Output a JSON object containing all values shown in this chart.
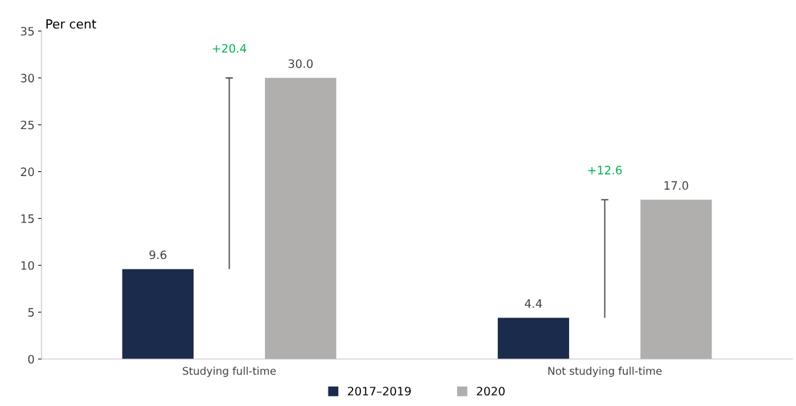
{
  "chart_data": {
    "type": "bar",
    "ylabel": "Per cent",
    "categories": [
      "Studying full-time",
      "Not studying full-time"
    ],
    "series": [
      {
        "name": "2017–2019",
        "color": "#1b2b4b",
        "values": [
          9.6,
          4.4
        ],
        "value_labels": [
          "9.6",
          "4.4"
        ]
      },
      {
        "name": "2020",
        "color": "#b0afad",
        "values": [
          30.0,
          17.0
        ],
        "value_labels": [
          "30.0",
          "17.0"
        ]
      },
      {
        "color": "#404040",
        "base": [
          9.6,
          4.4
        ],
        "values": [
          20.4,
          12.6
        ],
        "value_labels": [
          "+20.4",
          "+12.6"
        ]
      }
    ],
    "ylim": [
      0,
      35
    ],
    "yticks": [
      0,
      5,
      10,
      15,
      20,
      25,
      30,
      35
    ],
    "grid": false,
    "legend": "bottom"
  }
}
